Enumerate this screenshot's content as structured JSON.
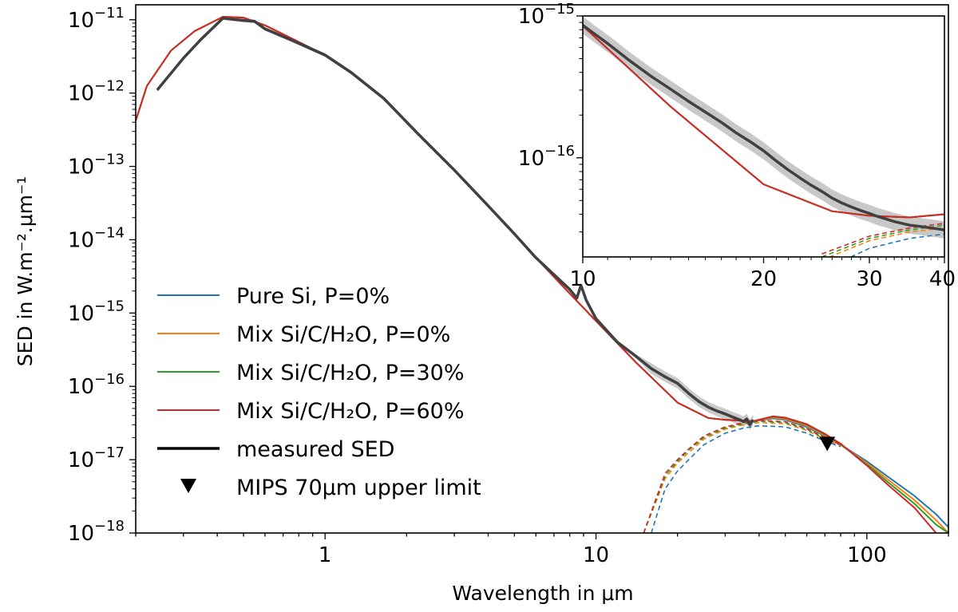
{
  "chart_data": {
    "type": "line",
    "xscale": "log",
    "yscale": "log",
    "xlabel": "Wavelength in μm",
    "ylabel": "SED in W.m⁻².μm⁻¹",
    "xlim": [
      0.2,
      200
    ],
    "ylim": [
      1e-18,
      1.6e-11
    ],
    "xticks": [
      {
        "value": 1,
        "label": "1"
      },
      {
        "value": 10,
        "label": "10"
      },
      {
        "value": 100,
        "label": "100"
      }
    ],
    "yticks": [
      {
        "value": 1e-11,
        "base": "10",
        "exp": "−11"
      },
      {
        "value": 1e-12,
        "base": "10",
        "exp": "−12"
      },
      {
        "value": 1e-13,
        "base": "10",
        "exp": "−13"
      },
      {
        "value": 1e-14,
        "base": "10",
        "exp": "−14"
      },
      {
        "value": 1e-15,
        "base": "10",
        "exp": "−15"
      },
      {
        "value": 1e-16,
        "base": "10",
        "exp": "−16"
      },
      {
        "value": 1e-17,
        "base": "10",
        "exp": "−17"
      },
      {
        "value": 1e-18,
        "base": "10",
        "exp": "−18"
      }
    ],
    "photosphere": {
      "x": [
        0.2,
        0.22,
        0.27,
        0.33,
        0.42,
        0.5,
        0.6,
        0.75,
        1.0,
        1.25,
        1.65,
        2.2,
        3.0,
        4.0,
        5.0,
        6.0,
        8.0,
        10.0,
        14.0,
        20.0,
        26.0,
        30.0,
        35.0,
        38.0
      ],
      "y": [
        4.2e-13,
        1.25e-12,
        3.8e-12,
        7e-12,
        1.1e-11,
        1.07e-11,
        8.4e-12,
        5.6e-12,
        3.3e-12,
        1.9e-12,
        8.4e-13,
        2.8e-13,
        8.9e-14,
        2.9e-14,
        1.2e-14,
        5.7e-15,
        1.85e-15,
        7.8e-16,
        2.15e-16,
        6e-17,
        3.7e-17,
        3.5e-17,
        3.4e-17,
        3.35e-17
      ]
    },
    "series": [
      {
        "name": "Pure Si, P=0%",
        "color": "#1f77b4",
        "total_x": [
          38,
          45,
          50,
          60,
          70,
          80,
          100,
          120,
          150,
          180,
          200
        ],
        "total_y": [
          3.7e-17,
          3.65e-17,
          3.5e-17,
          2.8e-17,
          2.1e-17,
          1.6e-17,
          9.5e-18,
          5.8e-18,
          3.2e-18,
          1.8e-18,
          1.2e-18
        ],
        "disk_x": [
          16,
          18,
          20,
          22,
          25,
          30,
          35,
          40,
          50,
          60,
          70,
          80
        ],
        "disk_y": [
          1e-18,
          4e-18,
          7e-18,
          1e-17,
          1.6e-17,
          2.3e-17,
          2.7e-17,
          2.9e-17,
          2.8e-17,
          2.3e-17,
          1.8e-17,
          1.5e-17
        ]
      },
      {
        "name": "Mix Si/C/H₂O, P=0%",
        "color": "#ff7f0e",
        "total_x": [
          38,
          45,
          50,
          60,
          70,
          80,
          100,
          120,
          150,
          180,
          200
        ],
        "total_y": [
          3.7e-17,
          3.75e-17,
          3.6e-17,
          2.9e-17,
          2.15e-17,
          1.6e-17,
          9e-18,
          5.3e-18,
          2.8e-18,
          1.5e-18,
          1e-18
        ],
        "disk_x": [
          15,
          18,
          20,
          22,
          25,
          30,
          35,
          40,
          50,
          60,
          70,
          80
        ],
        "disk_y": [
          1e-18,
          5.5e-18,
          9e-18,
          1.25e-17,
          1.9e-17,
          2.6e-17,
          3e-17,
          3.2e-17,
          3.1e-17,
          2.5e-17,
          1.9e-17,
          1.55e-17
        ]
      },
      {
        "name": "Mix Si/C/H₂O, P=30%",
        "color": "#2ca02c",
        "total_x": [
          38,
          45,
          50,
          60,
          70,
          80,
          100,
          120,
          150,
          180,
          200
        ],
        "total_y": [
          3.75e-17,
          3.85e-17,
          3.7e-17,
          3e-17,
          2.2e-17,
          1.62e-17,
          8.6e-18,
          4.9e-18,
          2.5e-18,
          1.3e-18,
          1e-18
        ],
        "disk_x": [
          15,
          18,
          20,
          22,
          25,
          30,
          35,
          40,
          50,
          60,
          70,
          80
        ],
        "disk_y": [
          1e-18,
          6e-18,
          9.5e-18,
          1.35e-17,
          2e-17,
          2.7e-17,
          3.1e-17,
          3.35e-17,
          3.2e-17,
          2.6e-17,
          1.95e-17,
          1.58e-17
        ]
      },
      {
        "name": "Mix Si/C/H₂O, P=60%",
        "color": "#d62728",
        "total_x": [
          38,
          45,
          50,
          60,
          70,
          80,
          100,
          120,
          150,
          180
        ],
        "total_y": [
          3.8e-17,
          3.9e-17,
          3.75e-17,
          3.05e-17,
          2.25e-17,
          1.65e-17,
          8.3e-18,
          4.5e-18,
          2.2e-18,
          1e-18
        ],
        "disk_x": [
          15,
          18,
          20,
          22,
          25,
          30,
          35,
          40,
          50,
          60,
          70,
          80
        ],
        "disk_y": [
          1e-18,
          6.5e-18,
          1e-17,
          1.4e-17,
          2.1e-17,
          2.8e-17,
          3.2e-17,
          3.45e-17,
          3.3e-17,
          2.65e-17,
          2e-17,
          1.6e-17
        ]
      }
    ],
    "measured": {
      "name": "measured SED",
      "color": "#404040",
      "x": [
        0.24,
        0.3,
        0.35,
        0.42,
        0.5,
        0.55,
        0.6,
        0.75,
        1.0,
        1.25,
        1.65,
        2.2,
        3.0,
        4.0,
        5.0,
        6.0,
        8.0,
        8.5,
        8.8,
        9.2,
        10.0,
        12.0,
        14.0,
        16.0,
        18.0,
        20.0,
        22.0,
        24.0,
        26.0,
        28.0,
        30.0,
        32.0,
        34.0,
        35.0,
        36.0,
        37.0,
        38.0
      ],
      "y": [
        1.1e-12,
        3e-12,
        5.5e-12,
        1.05e-11,
        9.8e-12,
        9.5e-12,
        7.5e-12,
        5.3e-12,
        3.3e-12,
        1.9e-12,
        8.4e-13,
        2.8e-13,
        8.9e-14,
        2.9e-14,
        1.2e-14,
        5.7e-15,
        2.1e-15,
        1.6e-15,
        2.4e-15,
        1.5e-15,
        8.4e-16,
        4e-16,
        2.6e-16,
        1.75e-16,
        1.35e-16,
        1.1e-16,
        8e-17,
        6.2e-17,
        5.2e-17,
        4.6e-17,
        4.2e-17,
        3.8e-17,
        3.5e-17,
        3.3e-17,
        3.6e-17,
        3e-17,
        3.5e-17
      ]
    },
    "upper_limit": {
      "name": "MIPS 70μm upper limit",
      "x": 71.4,
      "y": 1.6e-17
    },
    "inset": {
      "xscale": "log",
      "yscale": "log",
      "xlim": [
        10,
        40
      ],
      "ylim": [
        2e-17,
        1e-15
      ],
      "xticks": [
        {
          "value": 10,
          "label": "10"
        },
        {
          "value": 20,
          "label": "20"
        },
        {
          "value": 30,
          "label": "30"
        },
        {
          "value": 40,
          "label": "40"
        }
      ],
      "yticks": [
        {
          "value": 1e-15,
          "base": "10",
          "exp": "−15"
        },
        {
          "value": 1e-16,
          "base": "10",
          "exp": "−16"
        }
      ],
      "model_x": [
        10,
        14,
        20,
        26,
        30,
        35,
        40
      ],
      "model_y": [
        8.5e-16,
        2.3e-16,
        6.5e-17,
        4.2e-17,
        3.9e-17,
        3.8e-17,
        4e-17
      ],
      "measured_x": [
        10,
        11,
        12,
        13,
        14,
        15,
        16,
        17,
        18,
        19,
        20,
        21,
        22,
        23,
        24,
        25,
        26,
        27,
        28,
        29,
        30,
        31,
        32,
        33,
        34,
        35,
        36,
        37,
        38,
        39,
        40
      ],
      "measured_y": [
        8.6e-16,
        6.4e-16,
        4.8e-16,
        3.75e-16,
        3.05e-16,
        2.5e-16,
        2.1e-16,
        1.78e-16,
        1.5e-16,
        1.3e-16,
        1.12e-16,
        9.5e-17,
        8.2e-17,
        7.2e-17,
        6.4e-17,
        5.8e-17,
        5.2e-17,
        4.8e-17,
        4.5e-17,
        4.25e-17,
        4.05e-17,
        3.85e-17,
        3.7e-17,
        3.55e-17,
        3.45e-17,
        3.35e-17,
        3.3e-17,
        3.25e-17,
        3.2e-17,
        3.15e-17,
        3.1e-17
      ]
    }
  }
}
